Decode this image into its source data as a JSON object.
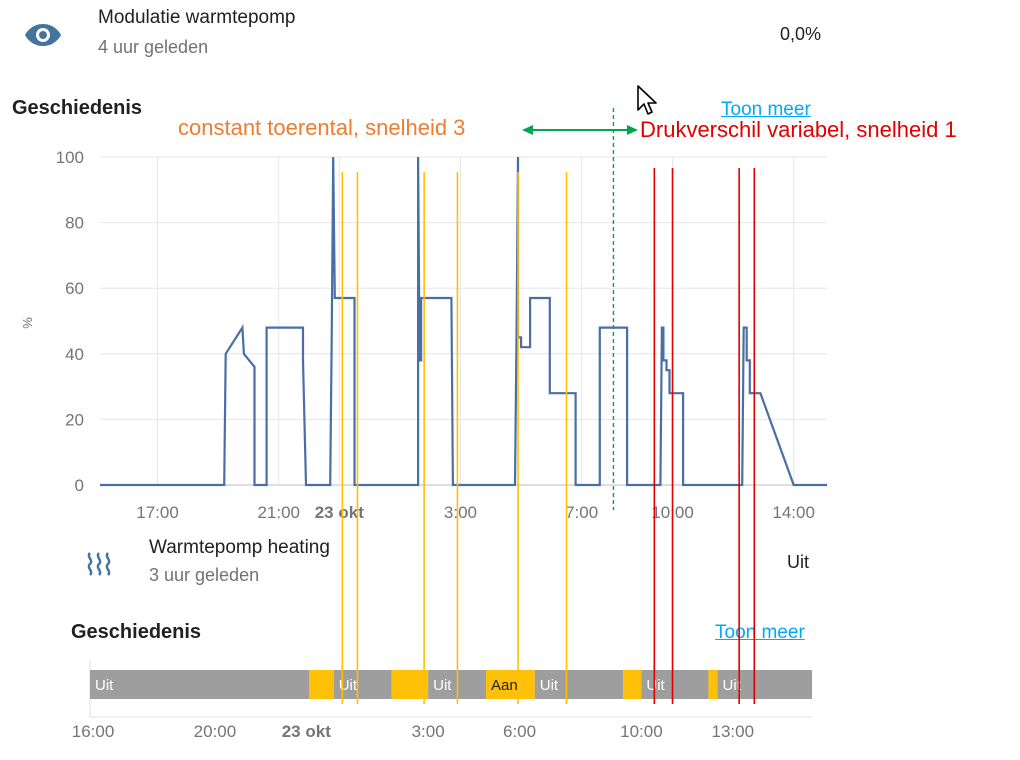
{
  "entity1": {
    "icon": "eye-icon",
    "name": "Modulatie warmtepomp",
    "last_changed": "4 uur geleden",
    "state": "0,0%"
  },
  "history1": {
    "title": "Geschiedenis",
    "more_link": "Toon meer"
  },
  "annotations": {
    "left": "constant toerental, snelheid 3",
    "right": "Drukverschil variabel, snelheid 1",
    "left_color": "#ed7d31",
    "right_color": "#e00000",
    "arrow_color": "#00a550"
  },
  "chart_data": [
    {
      "type": "line",
      "ylabel": "%",
      "ylim": [
        0,
        100
      ],
      "y_ticks": [
        "0",
        "20",
        "40",
        "60",
        "80",
        "100"
      ],
      "x_ticks": [
        "17:00",
        "21:00",
        "23 okt",
        "3:00",
        "7:00",
        "10:00",
        "14:00"
      ],
      "x_hours": [
        17,
        21,
        23,
        27,
        31,
        34,
        38
      ],
      "grid": true,
      "line_color": "#4a6fa5",
      "series": [
        {
          "x_hours": [
            15.1,
            19.2,
            19.25,
            19.8,
            19.8,
            19.85,
            20.2,
            20.2,
            20.6,
            20.6,
            21.8,
            21.8,
            21.9,
            22.7,
            22.75,
            22.8,
            22.85,
            23.5,
            23.5,
            25.6,
            25.6,
            25.65,
            25.7,
            25.7,
            26.0,
            26.0,
            26.7,
            26.7,
            26.75,
            28.8,
            28.85,
            28.9,
            28.9,
            29.0,
            29.0,
            29.3,
            29.3,
            29.4,
            29.4,
            29.95,
            29.95,
            30.8,
            30.8,
            31.6,
            31.6,
            32.5,
            32.5,
            33.6,
            33.65,
            33.7,
            33.7,
            33.8,
            33.8,
            33.9,
            33.9,
            34.35,
            34.35,
            34.4,
            34.4,
            36.3,
            36.35,
            36.45,
            36.45,
            36.55,
            36.55,
            36.9,
            38.0,
            39.1
          ],
          "values": [
            0,
            0,
            40,
            48,
            48,
            40,
            36,
            0,
            0,
            48,
            48,
            38,
            0,
            0,
            45,
            100,
            57,
            57,
            0,
            0,
            100,
            38,
            38,
            57,
            57,
            57,
            57,
            57,
            0,
            0,
            45,
            100,
            45,
            45,
            42,
            42,
            57,
            57,
            57,
            57,
            28,
            28,
            0,
            0,
            48,
            48,
            0,
            0,
            48,
            48,
            38,
            38,
            35,
            35,
            28,
            28,
            0,
            0,
            0,
            0,
            48,
            48,
            38,
            38,
            28,
            28,
            0,
            0
          ]
        }
      ]
    },
    {
      "type": "timeline",
      "x_ticks": [
        "16:00",
        "20:00",
        "23 okt",
        "3:00",
        "6:00",
        "10:00",
        "13:00"
      ],
      "x_hours": [
        16,
        20,
        23,
        27,
        30,
        34,
        37
      ],
      "segments": [
        {
          "start": 15.9,
          "end": 23.1,
          "state": "Uit",
          "label": "Uit"
        },
        {
          "start": 23.1,
          "end": 23.9,
          "state": "Aan",
          "label": ""
        },
        {
          "start": 23.9,
          "end": 25.8,
          "state": "Uit",
          "label": "Uit"
        },
        {
          "start": 25.8,
          "end": 27.0,
          "state": "Aan",
          "label": ""
        },
        {
          "start": 27.0,
          "end": 28.9,
          "state": "Uit",
          "label": "Uit"
        },
        {
          "start": 28.9,
          "end": 30.5,
          "state": "Aan",
          "label": "Aan"
        },
        {
          "start": 30.5,
          "end": 33.4,
          "state": "Uit",
          "label": "Uit"
        },
        {
          "start": 33.4,
          "end": 34.0,
          "state": "Aan",
          "label": ""
        },
        {
          "start": 34.0,
          "end": 36.2,
          "state": "Uit",
          "label": "Uit"
        },
        {
          "start": 36.2,
          "end": 36.5,
          "state": "Aan",
          "label": ""
        },
        {
          "start": 36.5,
          "end": 39.6,
          "state": "Uit",
          "label": "Uit"
        }
      ],
      "colors": {
        "Uit": "#9e9e9e",
        "Aan": "#ffc107"
      }
    }
  ],
  "entity2": {
    "icon": "heat-wave-icon",
    "name": "Warmtepomp heating",
    "last_changed": "3 uur geleden",
    "state": "Uit"
  },
  "history2": {
    "title": "Geschiedenis",
    "more_link": "Toon meer"
  },
  "overlay_lines": {
    "yellow_hours": [
      23.1,
      23.6,
      25.8,
      26.9,
      28.9,
      30.5
    ],
    "red_hours": [
      33.4,
      34.0,
      36.2,
      36.7
    ],
    "green_hour": 32.05
  }
}
